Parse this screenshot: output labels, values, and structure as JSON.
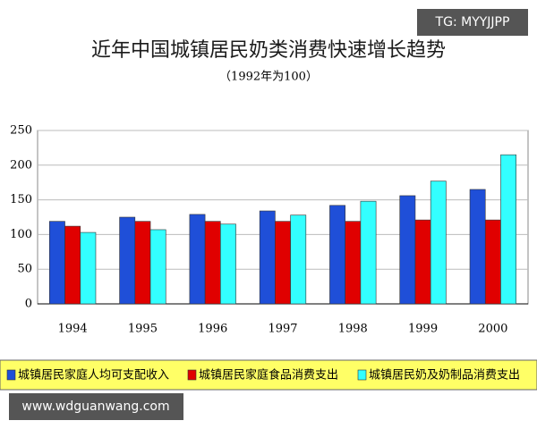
{
  "chart_data": {
    "type": "bar",
    "title": "近年中国城镇居民奶类消费快速增长趋势",
    "subtitle": "（1992年为100）",
    "categories": [
      "1994",
      "1995",
      "1996",
      "1997",
      "1998",
      "1999",
      "2000"
    ],
    "series": [
      {
        "name": "城镇居民家庭人均可支配收入",
        "color": "#1f4fd8",
        "values": [
          119,
          125,
          129,
          134,
          142,
          156,
          165
        ]
      },
      {
        "name": "城镇居民家庭食品消费支出",
        "color": "#e00000",
        "values": [
          112,
          119,
          119,
          119,
          119,
          121,
          121
        ]
      },
      {
        "name": "城镇居民奶及奶制品消费支出",
        "color": "#33ffff",
        "values": [
          103,
          107,
          115,
          128,
          148,
          177,
          215
        ]
      }
    ],
    "ylim": [
      0,
      250
    ],
    "yticks": [
      0,
      50,
      100,
      150,
      200,
      250
    ],
    "grid": true
  },
  "watermarks": [
    "TG: MYYJJPP",
    "www.wdguanwang.com"
  ]
}
